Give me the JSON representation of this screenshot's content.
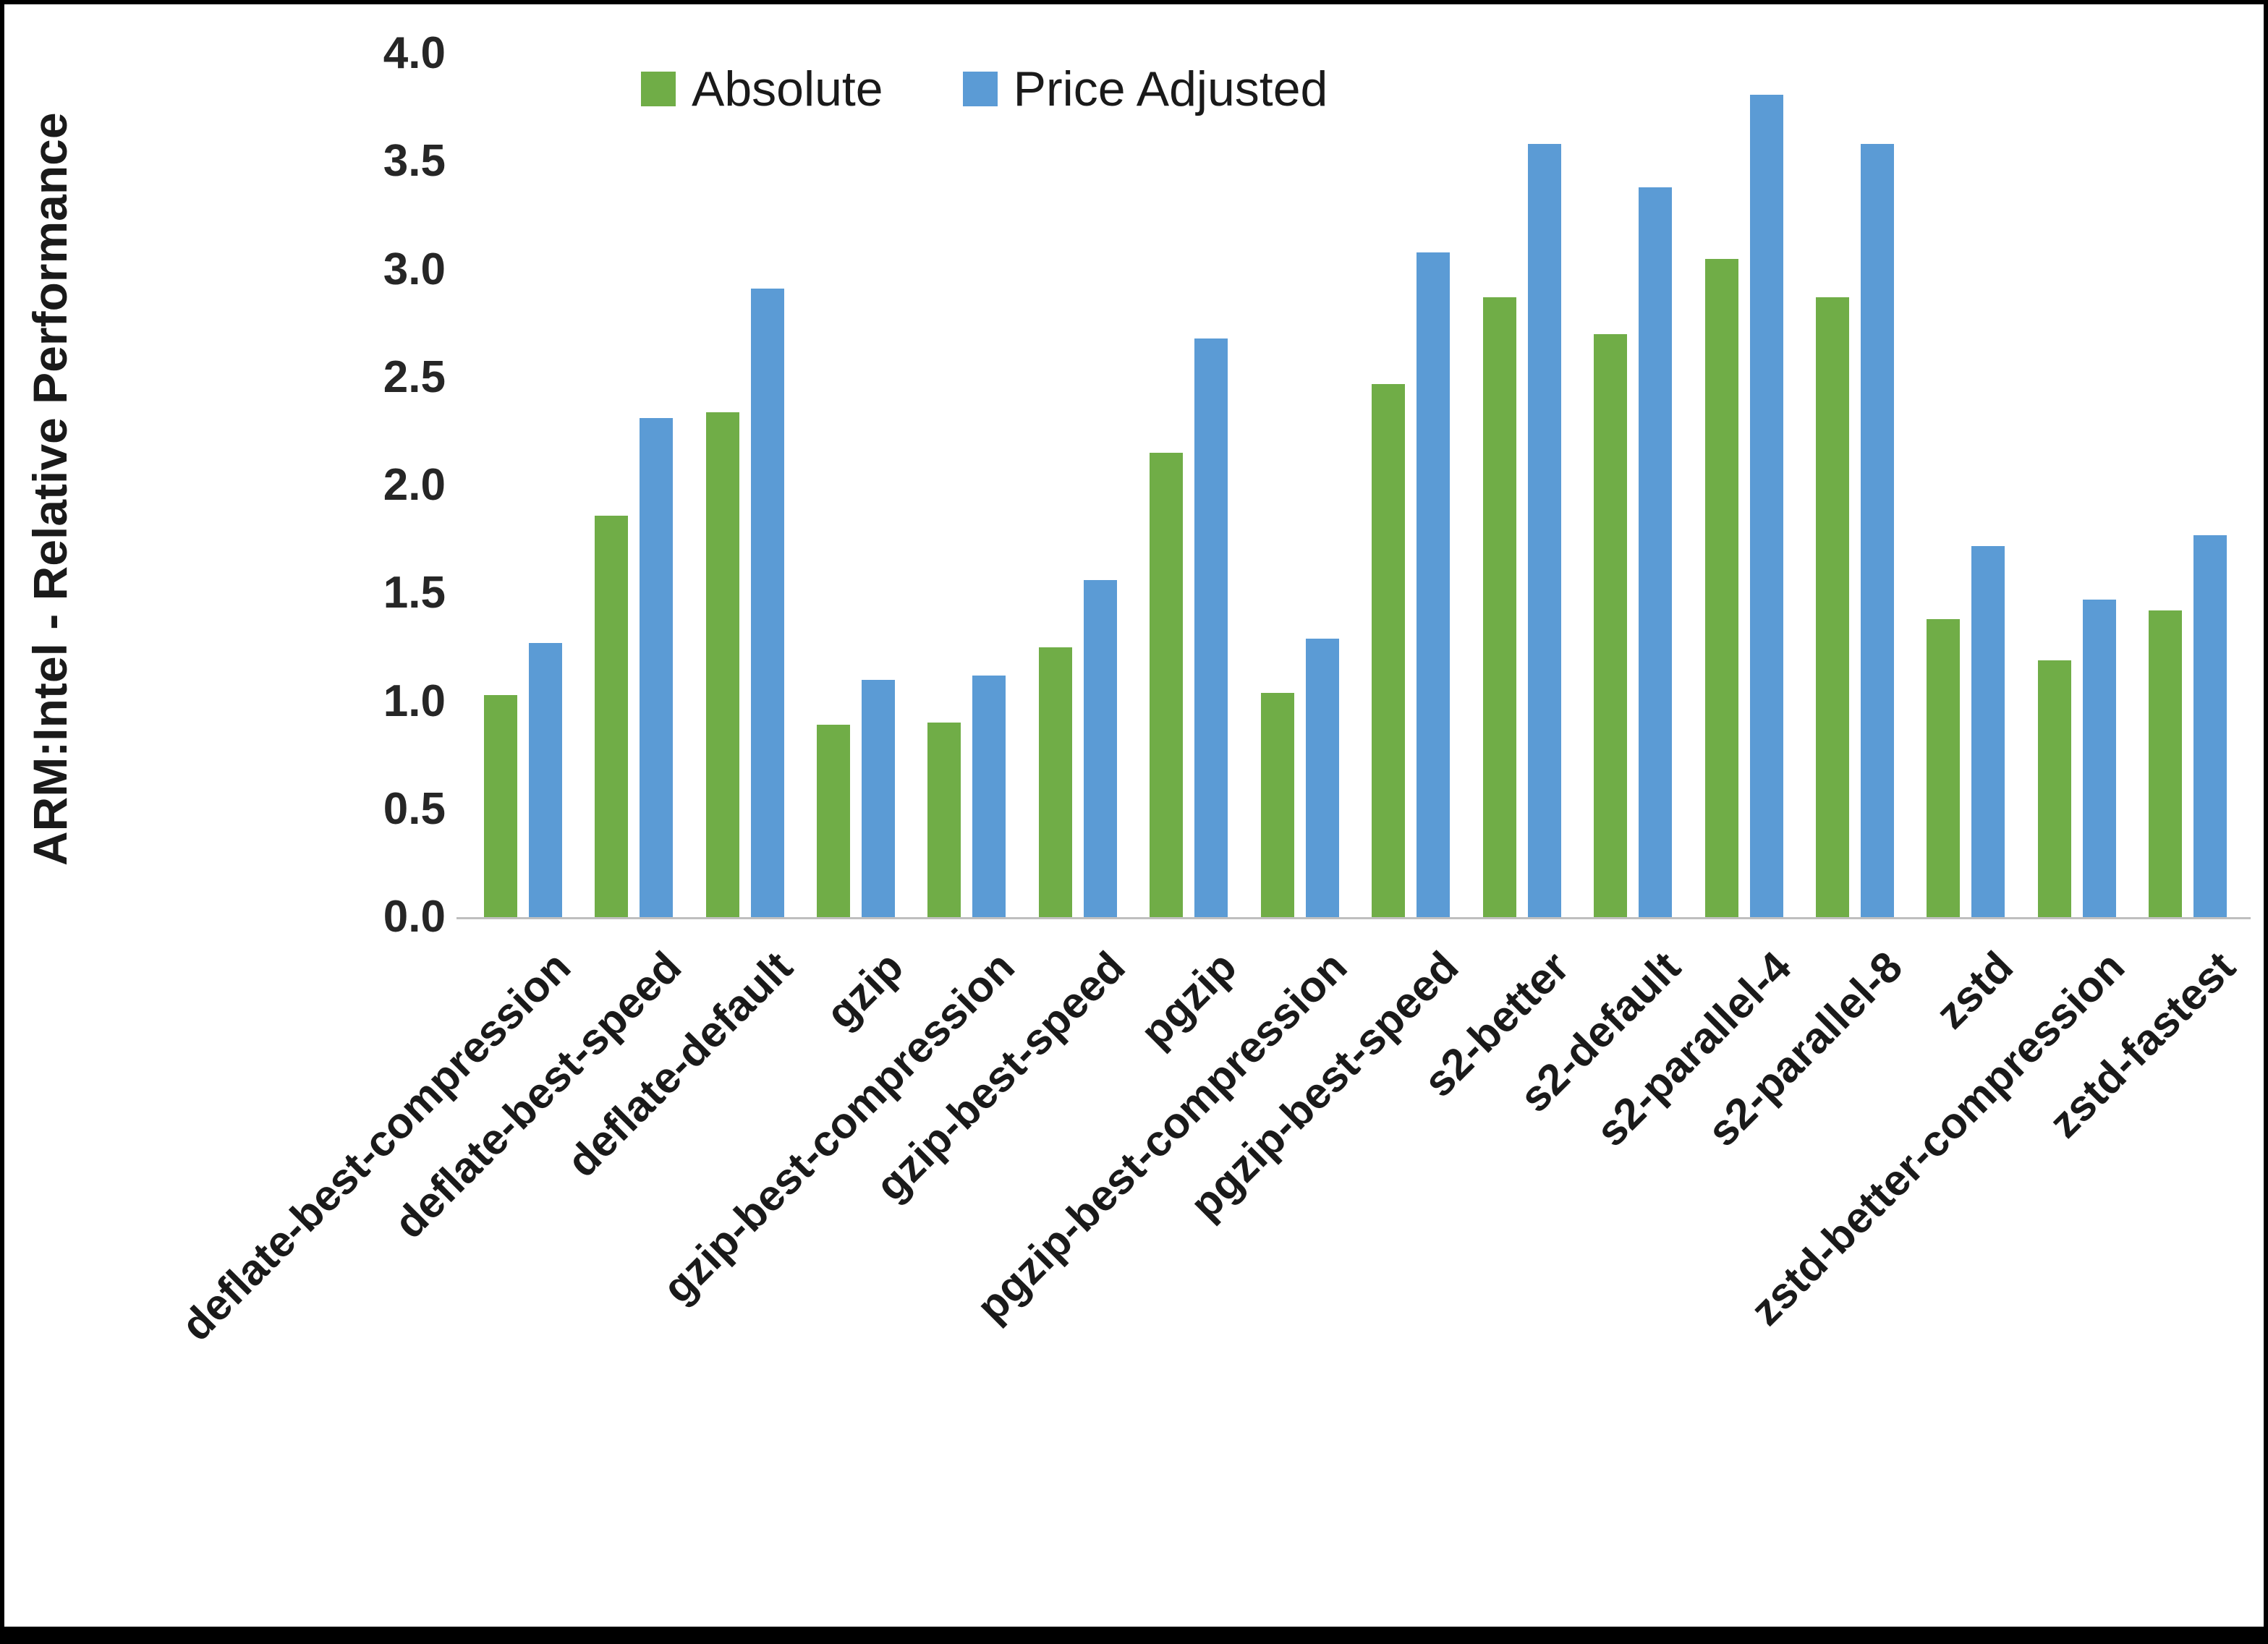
{
  "chart_data": {
    "type": "bar",
    "title": "",
    "ylabel": "ARM:Intel - Relative Performance",
    "xlabel": "",
    "ylim": [
      0,
      4
    ],
    "ytick_step": 0.5,
    "grid": false,
    "legend_position": "top",
    "categories": [
      "deflate-best-compression",
      "deflate-best-speed",
      "deflate-default",
      "gzip",
      "gzip-best-compression",
      "gzip-best-speed",
      "pgzip",
      "pgzip-best-compression",
      "pgzip-best-speed",
      "s2-better",
      "s2-default",
      "s2-parallel-4",
      "s2-parallel-8",
      "zstd",
      "zstd-better-compression",
      "zstd-fastest"
    ],
    "series": [
      {
        "name": "Absolute",
        "color": "#70AD47",
        "values": [
          1.03,
          1.86,
          2.34,
          0.89,
          0.9,
          1.25,
          2.15,
          1.04,
          2.47,
          2.87,
          2.7,
          3.05,
          2.87,
          1.38,
          1.19,
          1.42
        ]
      },
      {
        "name": "Price Adjusted",
        "color": "#5B9BD5",
        "values": [
          1.27,
          2.31,
          2.91,
          1.1,
          1.12,
          1.56,
          2.68,
          1.29,
          3.08,
          3.58,
          3.38,
          3.81,
          3.58,
          1.72,
          1.47,
          1.77
        ]
      }
    ]
  }
}
